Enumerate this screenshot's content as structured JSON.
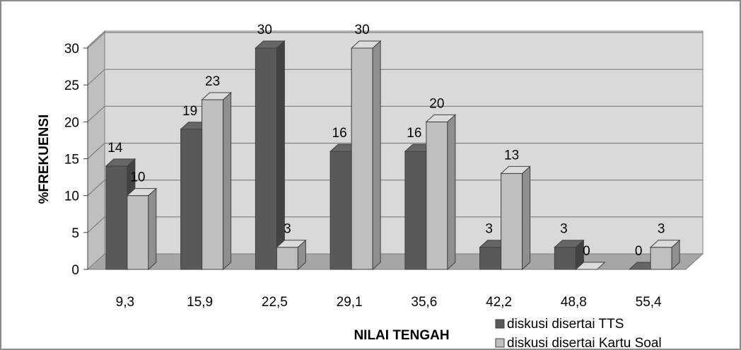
{
  "chart_data": {
    "type": "bar",
    "xlabel": "NILAI TENGAH",
    "ylabel": "%FREKUENSI",
    "categories": [
      "9,3",
      "15,9",
      "22,5",
      "29,1",
      "35,6",
      "42,2",
      "48,8",
      "55,4"
    ],
    "y_ticks": [
      "0",
      "5",
      "10",
      "15",
      "20",
      "25",
      "30"
    ],
    "ylim": [
      0,
      30
    ],
    "grid": true,
    "three_d": true,
    "legend_position": "bottom-right",
    "series": [
      {
        "name": "diskusi disertai TTS",
        "color": "#595959",
        "values": [
          14,
          19,
          30,
          16,
          16,
          3,
          3,
          0
        ],
        "labels": [
          "14",
          "19",
          "30",
          "16",
          "16",
          "3",
          "3",
          "0"
        ]
      },
      {
        "name": "diskusi disertai Kartu Soal",
        "color": "#bfbfbf",
        "values": [
          10,
          23,
          3,
          30,
          20,
          13,
          0,
          3
        ],
        "labels": [
          "10",
          "23",
          "3",
          "30",
          "20",
          "13",
          "0",
          "3"
        ]
      }
    ],
    "colors": {
      "wall": "#d9d9d9",
      "floor": "#a6a6a6",
      "gridline": "#7f7f7f",
      "border": "#7f7f7f"
    }
  }
}
